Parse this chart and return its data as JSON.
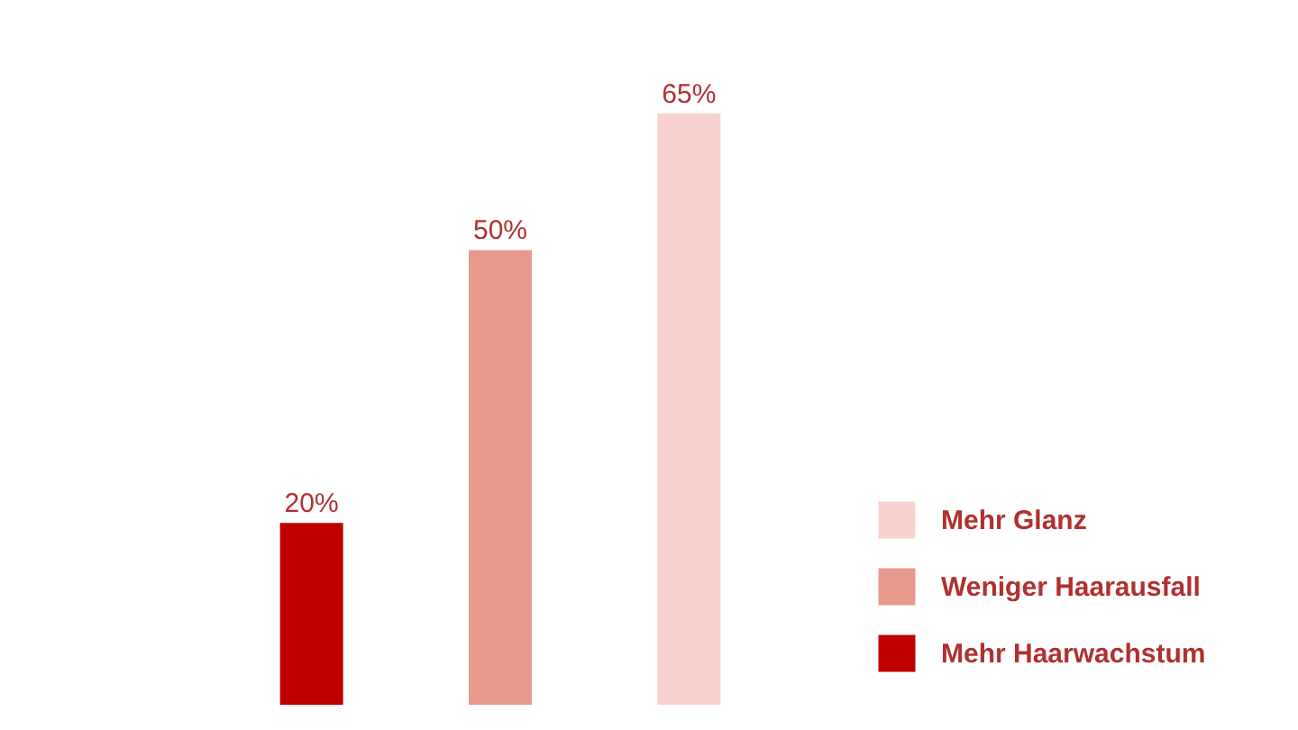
{
  "chart_data": {
    "type": "bar",
    "categories": [
      null,
      null,
      null
    ],
    "legend": "right",
    "stacked": true,
    "series": [
      {
        "name": "Mehr Haarwachstum",
        "color": "#c00000",
        "values": [
          20,
          null,
          null
        ],
        "value_labels": [
          "20%",
          null,
          null
        ]
      },
      {
        "name": "Weniger Haarausfall",
        "color": "#e8998d",
        "values": [
          null,
          50,
          null
        ],
        "value_labels": [
          null,
          "50%",
          null
        ]
      },
      {
        "name": "Mehr Glanz",
        "color": "#f8d3cd",
        "values": [
          null,
          null,
          65
        ],
        "value_labels": [
          null,
          null,
          "65%"
        ]
      }
    ]
  }
}
